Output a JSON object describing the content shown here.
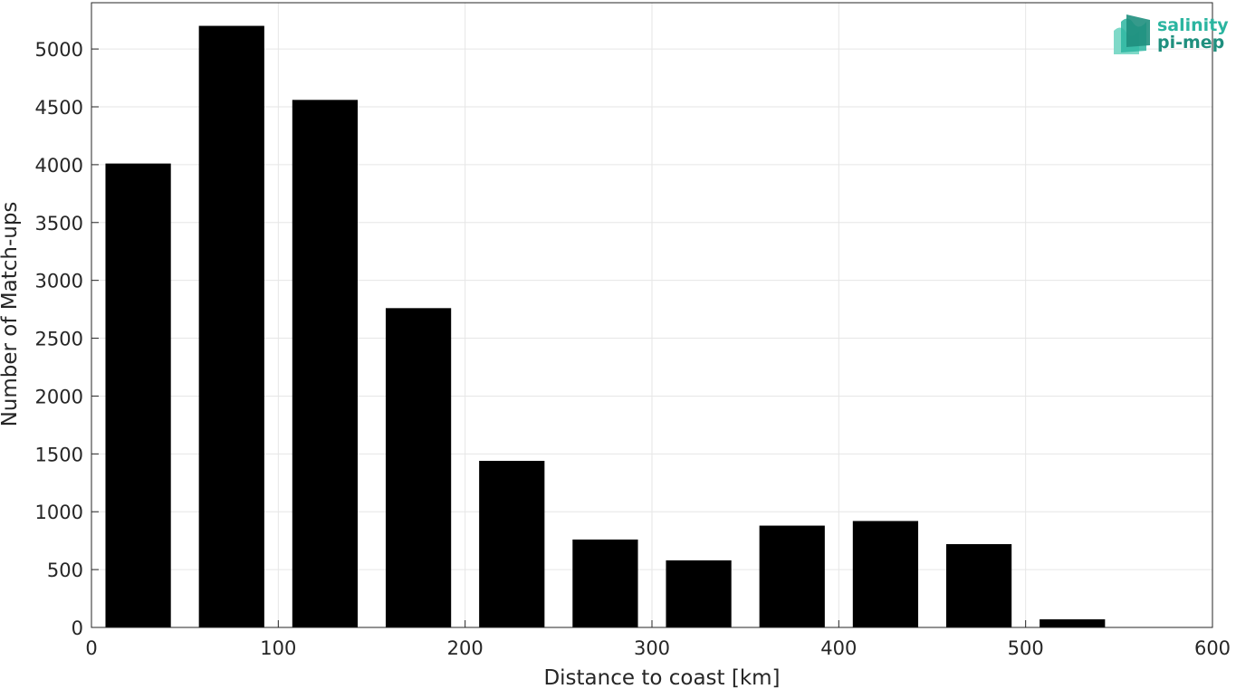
{
  "logo": {
    "line1": "salinity",
    "line2": "pi-mep"
  },
  "chart_data": {
    "type": "bar",
    "xlabel": "Distance to coast [km]",
    "ylabel": "Number of Match-ups",
    "xlim": [
      0,
      600
    ],
    "ylim": [
      0,
      5400
    ],
    "xticks": [
      0,
      100,
      200,
      300,
      400,
      500,
      600
    ],
    "yticks": [
      0,
      500,
      1000,
      1500,
      2000,
      2500,
      3000,
      3500,
      4000,
      4500,
      5000
    ],
    "grid": true,
    "bin_edges": [
      0,
      50,
      100,
      150,
      200,
      250,
      300,
      350,
      400,
      450,
      500,
      550,
      600
    ],
    "bin_centers": [
      25,
      75,
      125,
      175,
      225,
      275,
      325,
      375,
      425,
      475,
      525,
      575
    ],
    "values": [
      4010,
      5200,
      4560,
      2760,
      1440,
      760,
      580,
      880,
      920,
      720,
      70,
      0
    ],
    "bar_color": "#000000",
    "grid_color": "#e6e6e6",
    "logo_colors": [
      "#2bb5a0",
      "#1f8f7e",
      "#7fd9c8"
    ]
  }
}
